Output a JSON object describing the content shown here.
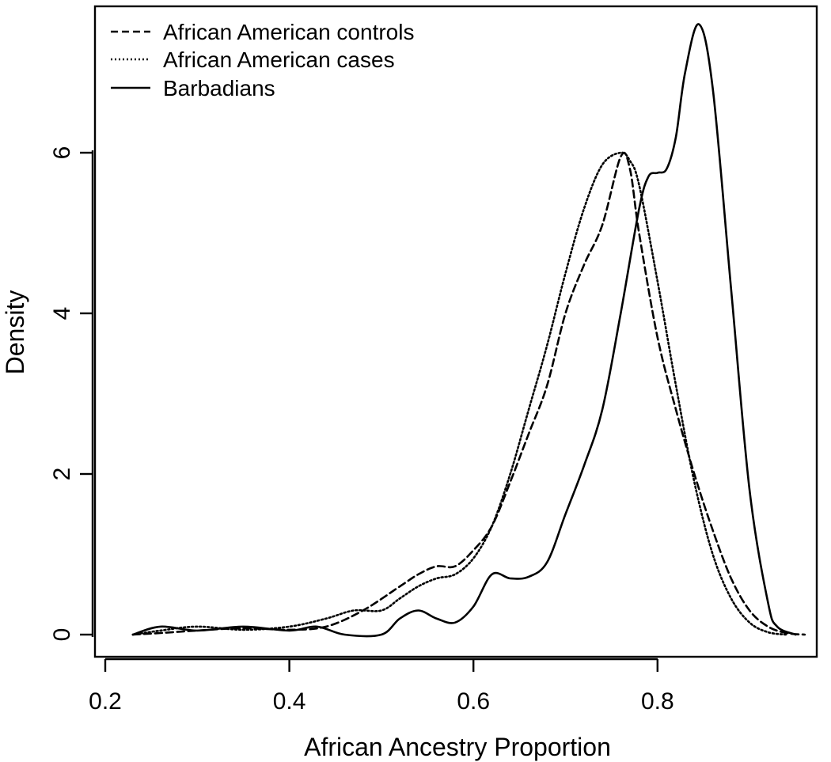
{
  "chart_data": {
    "type": "line",
    "title": "",
    "xlabel": "African Ancestry Proportion",
    "ylabel": "Density",
    "xlim": [
      0.2,
      0.96
    ],
    "ylim": [
      0,
      7.8
    ],
    "x_ticks": [
      0.2,
      0.4,
      0.6,
      0.8
    ],
    "x_tick_labels": [
      "0.2",
      "0.4",
      "0.6",
      "0.8"
    ],
    "y_ticks": [
      0,
      2,
      4,
      6
    ],
    "y_tick_labels": [
      "0",
      "2",
      "4",
      "6"
    ],
    "grid": false,
    "legend_position": "top-left",
    "series": [
      {
        "name": "African American controls",
        "line_style": "dashed",
        "x": [
          0.23,
          0.26,
          0.3,
          0.35,
          0.4,
          0.44,
          0.48,
          0.52,
          0.54,
          0.56,
          0.58,
          0.6,
          0.62,
          0.64,
          0.66,
          0.68,
          0.7,
          0.72,
          0.74,
          0.76,
          0.77,
          0.78,
          0.8,
          0.82,
          0.84,
          0.86,
          0.88,
          0.9,
          0.92,
          0.94,
          0.96
        ],
        "y": [
          0,
          0.02,
          0.05,
          0.08,
          0.06,
          0.1,
          0.3,
          0.6,
          0.75,
          0.85,
          0.85,
          1.05,
          1.35,
          1.9,
          2.5,
          3.1,
          4.0,
          4.6,
          5.1,
          5.95,
          5.8,
          5.0,
          3.7,
          2.8,
          2.0,
          1.3,
          0.7,
          0.3,
          0.1,
          0.02,
          0
        ]
      },
      {
        "name": "African American cases",
        "line_style": "dotted",
        "x": [
          0.23,
          0.26,
          0.3,
          0.35,
          0.4,
          0.44,
          0.47,
          0.5,
          0.52,
          0.54,
          0.56,
          0.58,
          0.6,
          0.62,
          0.64,
          0.66,
          0.68,
          0.7,
          0.72,
          0.74,
          0.76,
          0.77,
          0.78,
          0.8,
          0.82,
          0.84,
          0.86,
          0.88,
          0.9,
          0.92,
          0.94
        ],
        "y": [
          0,
          0.05,
          0.1,
          0.06,
          0.1,
          0.2,
          0.3,
          0.3,
          0.45,
          0.6,
          0.7,
          0.75,
          0.95,
          1.35,
          2.0,
          2.8,
          3.6,
          4.5,
          5.3,
          5.85,
          6.0,
          5.9,
          5.6,
          4.4,
          3.1,
          1.9,
          1.0,
          0.45,
          0.15,
          0.03,
          0
        ]
      },
      {
        "name": "Barbadians",
        "line_style": "solid",
        "x": [
          0.23,
          0.26,
          0.3,
          0.35,
          0.4,
          0.43,
          0.46,
          0.5,
          0.52,
          0.54,
          0.56,
          0.58,
          0.6,
          0.62,
          0.64,
          0.66,
          0.68,
          0.7,
          0.72,
          0.74,
          0.76,
          0.78,
          0.79,
          0.8,
          0.81,
          0.82,
          0.83,
          0.845,
          0.86,
          0.88,
          0.9,
          0.92,
          0.93,
          0.95
        ],
        "y": [
          0,
          0.1,
          0.05,
          0.1,
          0.05,
          0.1,
          0,
          0,
          0.2,
          0.3,
          0.2,
          0.15,
          0.35,
          0.75,
          0.7,
          0.72,
          0.9,
          1.5,
          2.1,
          2.8,
          4.0,
          5.3,
          5.7,
          5.75,
          5.8,
          6.2,
          7.0,
          7.6,
          6.8,
          4.3,
          1.8,
          0.4,
          0.1,
          0
        ]
      }
    ]
  }
}
